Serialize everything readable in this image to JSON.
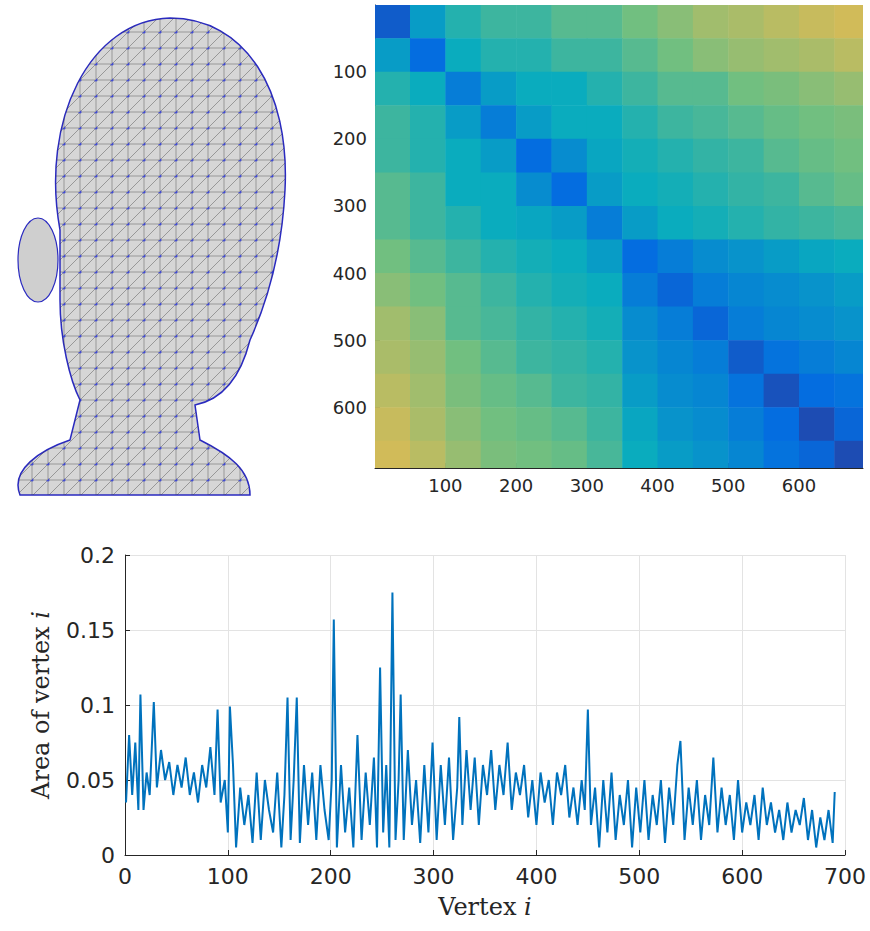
{
  "chart_data": [
    {
      "type": "heatmap",
      "x_edges": [
        0.5,
        50,
        100,
        150,
        200,
        250,
        300,
        350,
        400,
        450,
        500,
        550,
        600,
        650,
        690.5
      ],
      "y_edges": [
        0.5,
        50,
        100,
        150,
        200,
        250,
        300,
        350,
        400,
        450,
        500,
        550,
        600,
        650,
        690.5
      ],
      "cells": [
        [
          0.15,
          0.35,
          0.45,
          0.5,
          0.5,
          0.55,
          0.55,
          0.6,
          0.65,
          0.7,
          0.72,
          0.75,
          0.78,
          0.8
        ],
        [
          0.35,
          0.2,
          0.4,
          0.45,
          0.45,
          0.5,
          0.5,
          0.55,
          0.6,
          0.65,
          0.68,
          0.7,
          0.72,
          0.75
        ],
        [
          0.45,
          0.4,
          0.25,
          0.35,
          0.4,
          0.4,
          0.45,
          0.5,
          0.55,
          0.55,
          0.6,
          0.62,
          0.65,
          0.68
        ],
        [
          0.5,
          0.45,
          0.35,
          0.25,
          0.35,
          0.4,
          0.4,
          0.45,
          0.5,
          0.52,
          0.55,
          0.58,
          0.6,
          0.62
        ],
        [
          0.5,
          0.45,
          0.4,
          0.35,
          0.2,
          0.3,
          0.38,
          0.42,
          0.45,
          0.48,
          0.5,
          0.55,
          0.58,
          0.6
        ],
        [
          0.55,
          0.5,
          0.4,
          0.4,
          0.3,
          0.2,
          0.35,
          0.4,
          0.42,
          0.45,
          0.48,
          0.5,
          0.55,
          0.58
        ],
        [
          0.55,
          0.5,
          0.45,
          0.4,
          0.38,
          0.35,
          0.25,
          0.35,
          0.4,
          0.42,
          0.45,
          0.48,
          0.5,
          0.52
        ],
        [
          0.6,
          0.55,
          0.5,
          0.45,
          0.42,
          0.4,
          0.35,
          0.2,
          0.25,
          0.3,
          0.32,
          0.35,
          0.38,
          0.4
        ],
        [
          0.65,
          0.6,
          0.55,
          0.5,
          0.45,
          0.42,
          0.4,
          0.25,
          0.18,
          0.25,
          0.28,
          0.3,
          0.32,
          0.35
        ],
        [
          0.7,
          0.65,
          0.55,
          0.52,
          0.48,
          0.45,
          0.42,
          0.3,
          0.25,
          0.18,
          0.25,
          0.28,
          0.3,
          0.32
        ],
        [
          0.72,
          0.68,
          0.6,
          0.55,
          0.5,
          0.48,
          0.45,
          0.32,
          0.28,
          0.25,
          0.15,
          0.22,
          0.25,
          0.28
        ],
        [
          0.75,
          0.7,
          0.62,
          0.58,
          0.55,
          0.5,
          0.48,
          0.35,
          0.3,
          0.28,
          0.22,
          0.12,
          0.2,
          0.22
        ],
        [
          0.78,
          0.72,
          0.65,
          0.6,
          0.58,
          0.55,
          0.5,
          0.38,
          0.32,
          0.3,
          0.25,
          0.2,
          0.1,
          0.18
        ],
        [
          0.8,
          0.75,
          0.68,
          0.62,
          0.6,
          0.58,
          0.52,
          0.4,
          0.35,
          0.32,
          0.28,
          0.22,
          0.18,
          0.1
        ]
      ],
      "clim": [
        0,
        1
      ],
      "xlim": [
        0.5,
        690.5
      ],
      "xticks": [
        100,
        200,
        300,
        400,
        500,
        600
      ],
      "ylim": [
        0.5,
        690.5
      ],
      "yticks": [
        100,
        200,
        300,
        400,
        500,
        600
      ]
    },
    {
      "type": "line",
      "xlabel": "Vertex i",
      "ylabel": "Area of vertex i",
      "color": "#0072bd",
      "x": [
        1,
        4,
        7,
        10,
        13,
        15,
        18,
        21,
        24,
        28,
        31,
        35,
        39,
        43,
        47,
        51,
        55,
        59,
        63,
        67,
        71,
        75,
        79,
        83,
        87,
        90,
        93,
        97,
        100,
        102,
        105,
        108,
        112,
        116,
        120,
        124,
        128,
        132,
        136,
        140,
        144,
        148,
        152,
        155,
        158,
        161,
        164,
        167,
        170,
        174,
        178,
        182,
        186,
        190,
        194,
        198,
        201,
        203,
        206,
        210,
        214,
        218,
        222,
        226,
        230,
        234,
        238,
        242,
        245,
        248,
        251,
        254,
        257,
        260,
        263,
        266,
        268,
        271,
        275,
        279,
        283,
        287,
        291,
        295,
        299,
        303,
        307,
        311,
        315,
        319,
        323,
        325,
        328,
        332,
        336,
        340,
        344,
        348,
        352,
        356,
        360,
        364,
        368,
        372,
        376,
        380,
        384,
        388,
        392,
        396,
        400,
        404,
        408,
        412,
        416,
        420,
        424,
        428,
        432,
        436,
        440,
        444,
        447,
        450,
        453,
        457,
        461,
        465,
        469,
        473,
        477,
        481,
        485,
        489,
        493,
        497,
        501,
        505,
        509,
        513,
        517,
        521,
        525,
        529,
        533,
        537,
        540,
        544,
        548,
        552,
        556,
        560,
        564,
        568,
        572,
        576,
        580,
        584,
        588,
        592,
        596,
        600,
        604,
        608,
        612,
        616,
        620,
        624,
        628,
        632,
        636,
        640,
        644,
        648,
        652,
        656,
        660,
        664,
        668,
        672,
        676,
        680,
        684,
        688,
        690
      ],
      "values": [
        0.035,
        0.08,
        0.04,
        0.075,
        0.03,
        0.107,
        0.03,
        0.055,
        0.04,
        0.102,
        0.045,
        0.07,
        0.05,
        0.062,
        0.04,
        0.06,
        0.045,
        0.065,
        0.04,
        0.055,
        0.035,
        0.06,
        0.045,
        0.072,
        0.04,
        0.097,
        0.035,
        0.05,
        0.015,
        0.099,
        0.06,
        0.005,
        0.045,
        0.02,
        0.04,
        0.008,
        0.055,
        0.01,
        0.05,
        0.03,
        0.015,
        0.055,
        0.005,
        0.04,
        0.105,
        0.01,
        0.05,
        0.105,
        0.008,
        0.06,
        0.02,
        0.055,
        0.01,
        0.06,
        0.03,
        0.01,
        0.05,
        0.157,
        0.005,
        0.06,
        0.015,
        0.045,
        0.005,
        0.08,
        0.01,
        0.055,
        0.02,
        0.065,
        0.005,
        0.125,
        0.015,
        0.06,
        0.005,
        0.175,
        0.01,
        0.05,
        0.107,
        0.01,
        0.07,
        0.02,
        0.05,
        0.008,
        0.06,
        0.015,
        0.075,
        0.01,
        0.06,
        0.02,
        0.065,
        0.01,
        0.045,
        0.092,
        0.02,
        0.07,
        0.03,
        0.065,
        0.02,
        0.06,
        0.04,
        0.07,
        0.03,
        0.06,
        0.04,
        0.075,
        0.03,
        0.055,
        0.04,
        0.06,
        0.025,
        0.05,
        0.02,
        0.055,
        0.035,
        0.05,
        0.02,
        0.055,
        0.04,
        0.06,
        0.025,
        0.045,
        0.02,
        0.05,
        0.03,
        0.097,
        0.02,
        0.045,
        0.005,
        0.05,
        0.015,
        0.055,
        0.01,
        0.04,
        0.02,
        0.05,
        0.005,
        0.045,
        0.015,
        0.05,
        0.01,
        0.04,
        0.02,
        0.05,
        0.008,
        0.045,
        0.02,
        0.06,
        0.076,
        0.01,
        0.045,
        0.02,
        0.05,
        0.01,
        0.04,
        0.02,
        0.065,
        0.015,
        0.045,
        0.02,
        0.04,
        0.01,
        0.05,
        0.015,
        0.035,
        0.02,
        0.04,
        0.01,
        0.045,
        0.02,
        0.035,
        0.015,
        0.03,
        0.01,
        0.035,
        0.015,
        0.03,
        0.02,
        0.038,
        0.01,
        0.03,
        0.005,
        0.025,
        0.01,
        0.03,
        0.008,
        0.042
      ],
      "xlim": [
        0,
        700
      ],
      "xticks": [
        0,
        100,
        200,
        300,
        400,
        500,
        600,
        700
      ],
      "ylim": [
        0,
        0.2
      ],
      "yticks": [
        0,
        0.05,
        0.1,
        0.15,
        0.2
      ],
      "grid": true
    }
  ]
}
